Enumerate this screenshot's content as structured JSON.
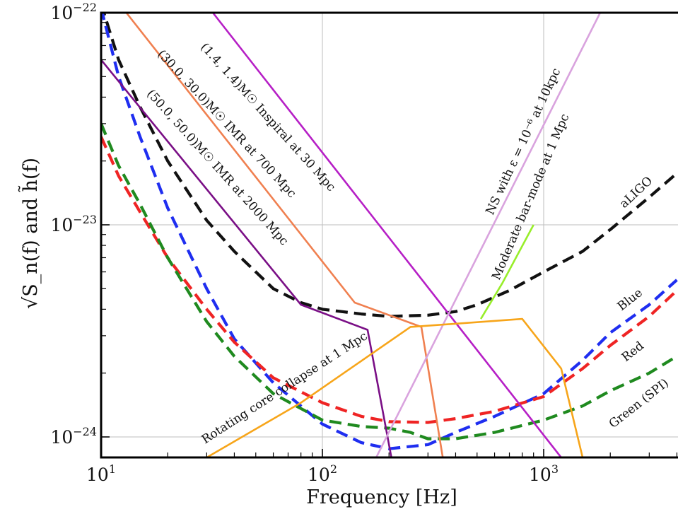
{
  "chart_data": {
    "type": "line",
    "xlabel": "Frequency [Hz]",
    "ylabel": "√S_n(f) and h̃(f)",
    "x_scale": "log",
    "y_scale": "log",
    "xlim": [
      10,
      4000
    ],
    "ylim": [
      8e-25,
      1e-22
    ],
    "grid": true,
    "x_ticks": [
      {
        "value": 10,
        "base": "10",
        "exp": "1"
      },
      {
        "value": 100,
        "base": "10",
        "exp": "2"
      },
      {
        "value": 1000,
        "base": "10",
        "exp": "3"
      }
    ],
    "y_ticks": [
      {
        "value": 1e-22,
        "base": "10",
        "exp": "−22"
      },
      {
        "value": 1e-23,
        "base": "10",
        "exp": "−23"
      },
      {
        "value": 1e-24,
        "base": "10",
        "exp": "−24"
      }
    ],
    "series": [
      {
        "name": "aLIGO",
        "color": "#111111",
        "dash": true,
        "points": [
          [
            10,
            1.1e-22
          ],
          [
            12,
            6e-23
          ],
          [
            15,
            3.6e-23
          ],
          [
            20,
            2e-23
          ],
          [
            30,
            1.05e-23
          ],
          [
            40,
            7.5e-24
          ],
          [
            60,
            5e-24
          ],
          [
            80,
            4.3e-24
          ],
          [
            100,
            4e-24
          ],
          [
            150,
            3.8e-24
          ],
          [
            200,
            3.7e-24
          ],
          [
            300,
            3.75e-24
          ],
          [
            400,
            3.9e-24
          ],
          [
            500,
            4.2e-24
          ],
          [
            700,
            4.9e-24
          ],
          [
            1000,
            6e-24
          ],
          [
            1500,
            7.5e-24
          ],
          [
            2000,
            9.5e-24
          ],
          [
            3000,
            1.35e-23
          ],
          [
            4000,
            1.75e-23
          ]
        ]
      },
      {
        "name": "Blue",
        "color": "#1f2ef0",
        "dash": true,
        "points": [
          [
            10,
            1.05e-22
          ],
          [
            12,
            5e-23
          ],
          [
            15,
            2.6e-23
          ],
          [
            20,
            1.2e-23
          ],
          [
            30,
            5e-24
          ],
          [
            40,
            2.9e-24
          ],
          [
            60,
            1.8e-24
          ],
          [
            100,
            1.15e-24
          ],
          [
            150,
            9.4e-25
          ],
          [
            200,
            8.8e-25
          ],
          [
            300,
            9.2e-25
          ],
          [
            400,
            1.05e-24
          ],
          [
            600,
            1.25e-24
          ],
          [
            1000,
            1.6e-24
          ],
          [
            1500,
            2.3e-24
          ],
          [
            2000,
            3.1e-24
          ],
          [
            3000,
            4.2e-24
          ],
          [
            4000,
            5.5e-24
          ]
        ]
      },
      {
        "name": "Red",
        "color": "#ef2424",
        "dash": true,
        "points": [
          [
            10,
            2.6e-23
          ],
          [
            12,
            1.7e-23
          ],
          [
            15,
            1.15e-23
          ],
          [
            20,
            7e-24
          ],
          [
            30,
            4e-24
          ],
          [
            40,
            2.8e-24
          ],
          [
            60,
            1.9e-24
          ],
          [
            100,
            1.45e-24
          ],
          [
            150,
            1.25e-24
          ],
          [
            200,
            1.18e-24
          ],
          [
            300,
            1.17e-24
          ],
          [
            400,
            1.22e-24
          ],
          [
            600,
            1.32e-24
          ],
          [
            1000,
            1.55e-24
          ],
          [
            1500,
            2.1e-24
          ],
          [
            2000,
            2.7e-24
          ],
          [
            3000,
            3.7e-24
          ],
          [
            4000,
            4.9e-24
          ]
        ]
      },
      {
        "name": "Green (SPI)",
        "color": "#1f8a1f",
        "dash": true,
        "points": [
          [
            10,
            3e-23
          ],
          [
            12,
            1.9e-23
          ],
          [
            15,
            1.25e-23
          ],
          [
            20,
            7e-24
          ],
          [
            30,
            3.5e-24
          ],
          [
            40,
            2.4e-24
          ],
          [
            60,
            1.6e-24
          ],
          [
            100,
            1.2e-24
          ],
          [
            150,
            1.12e-24
          ],
          [
            200,
            1.1e-24
          ],
          [
            250,
            1.05e-24
          ],
          [
            300,
            9.8e-25
          ],
          [
            400,
            9.8e-25
          ],
          [
            600,
            1.05e-24
          ],
          [
            1000,
            1.2e-24
          ],
          [
            1500,
            1.4e-24
          ],
          [
            2000,
            1.65e-24
          ],
          [
            3000,
            2e-24
          ],
          [
            4000,
            2.4e-24
          ]
        ]
      },
      {
        "name": "(1.4,1.4)M☉ Inspiral at 30 Mpc",
        "color": "#b61fc6",
        "dash": false,
        "points": [
          [
            32,
            1e-22
          ],
          [
            1200,
            8e-25
          ]
        ]
      },
      {
        "name": "(30.0,30.0)M☉ IMR at 700 Mpc",
        "color": "#f08050",
        "dash": false,
        "points": [
          [
            13,
            1e-22
          ],
          [
            140,
            4.3e-24
          ],
          [
            280,
            3.3e-24
          ],
          [
            350,
            8e-25
          ]
        ]
      },
      {
        "name": "(50.0,50.0)M☉ IMR at 2000 Mpc",
        "color": "#7a0f86",
        "dash": false,
        "points": [
          [
            10,
            6e-23
          ],
          [
            80,
            4.2e-24
          ],
          [
            160,
            3.2e-24
          ],
          [
            205,
            8e-25
          ]
        ]
      },
      {
        "name": "NS with ε = 10⁻⁶ at 10kpc",
        "color": "#d9a3de",
        "dash": false,
        "points": [
          [
            175,
            8e-25
          ],
          [
            1800,
            1e-22
          ]
        ]
      },
      {
        "name": "Moderate bar-mode at 1 Mpc",
        "color": "#98ee2a",
        "dash": false,
        "points": [
          [
            520,
            3.6e-24
          ],
          [
            650,
            5.3e-24
          ],
          [
            900,
            1e-23
          ]
        ]
      },
      {
        "name": "Rotating core collapse at 1 Mpc",
        "color": "#f7a51a",
        "dash": false,
        "points": [
          [
            30,
            8e-25
          ],
          [
            80,
            1.45e-24
          ],
          [
            250,
            3.3e-24
          ],
          [
            800,
            3.6e-24
          ],
          [
            1200,
            2.1e-24
          ],
          [
            1500,
            8e-25
          ]
        ]
      }
    ],
    "annotations": [
      {
        "text": "(1.4, 1.4)M☉ Inspiral at 30 Mpc"
      },
      {
        "text": "(30.0, 30.0)M☉ IMR at 700 Mpc"
      },
      {
        "text": "(50.0, 50.0)M☉ IMR at 2000 Mpc"
      },
      {
        "text": "NS with ε = 10⁻⁶ at 10kpc"
      },
      {
        "text": "Moderate bar-mode at 1 Mpc"
      },
      {
        "text": "aLIGO"
      },
      {
        "text": "Blue"
      },
      {
        "text": "Red"
      },
      {
        "text": "Green (SPI)"
      },
      {
        "text": "Rotating core collapse at 1 Mpc"
      }
    ]
  }
}
